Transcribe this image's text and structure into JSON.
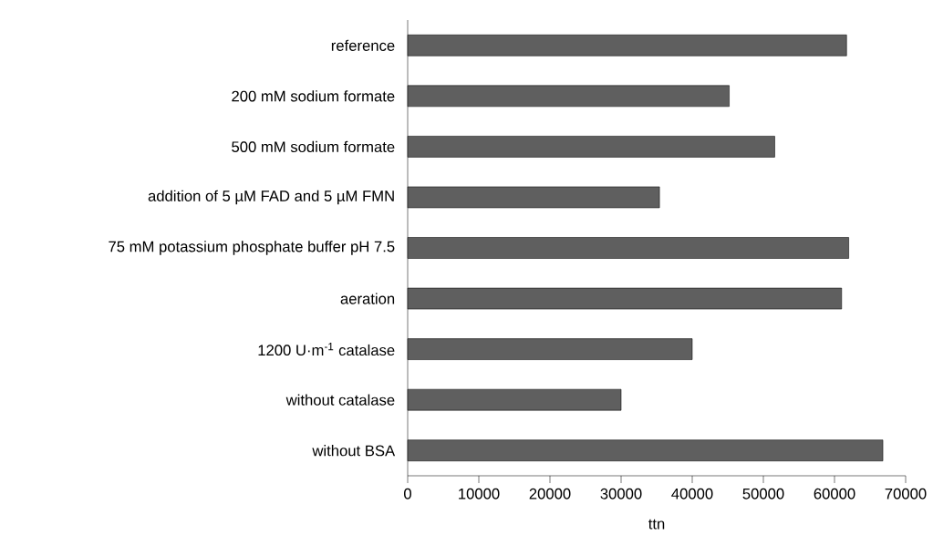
{
  "chart_data": {
    "type": "bar",
    "orientation": "horizontal",
    "xlabel": "ttn",
    "categories": [
      "reference",
      "200 mM sodium formate",
      "500 mM sodium formate",
      "addition of 5 µM FAD and 5 µM FMN",
      "75 mM potassium phosphate buffer pH 7.5",
      "aeration",
      "1200 U·m$^{-1}$ catalase",
      "without catalase",
      "without BSA"
    ],
    "values": [
      61700,
      45200,
      51600,
      35400,
      62000,
      61000,
      40000,
      30000,
      66800
    ],
    "color": "#5f5f5f",
    "xlim": [
      0,
      70000
    ],
    "xticks": [
      0,
      10000,
      20000,
      30000,
      40000,
      50000,
      60000,
      70000
    ]
  }
}
